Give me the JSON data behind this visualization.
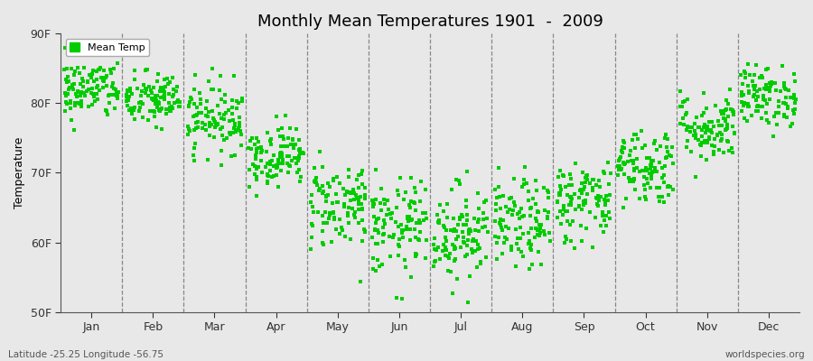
{
  "title": "Monthly Mean Temperatures 1901  -  2009",
  "ylabel": "Temperature",
  "xlabel_labels": [
    "Jan",
    "Feb",
    "Mar",
    "Apr",
    "May",
    "Jun",
    "Jul",
    "Aug",
    "Sep",
    "Oct",
    "Nov",
    "Dec"
  ],
  "ylim": [
    50,
    90
  ],
  "yticks": [
    50,
    60,
    70,
    80,
    90
  ],
  "ytick_labels": [
    "50F",
    "60F",
    "70F",
    "80F",
    "90F"
  ],
  "dot_color": "#00CC00",
  "dot_size": 6,
  "legend_label": "Mean Temp",
  "footer_left": "Latitude -25.25 Longitude -56.75",
  "footer_right": "worldspecies.org",
  "bg_color": "#e8e8e8",
  "plot_bg_color": "#e8e8e8",
  "monthly_means": [
    82.0,
    80.5,
    78.0,
    72.5,
    65.5,
    62.0,
    61.5,
    62.5,
    66.0,
    71.0,
    76.5,
    81.0
  ],
  "monthly_stds": [
    2.2,
    2.0,
    2.5,
    2.2,
    3.2,
    3.5,
    3.5,
    3.2,
    3.0,
    2.8,
    2.5,
    2.2
  ],
  "n_years": 109,
  "seed": 42
}
